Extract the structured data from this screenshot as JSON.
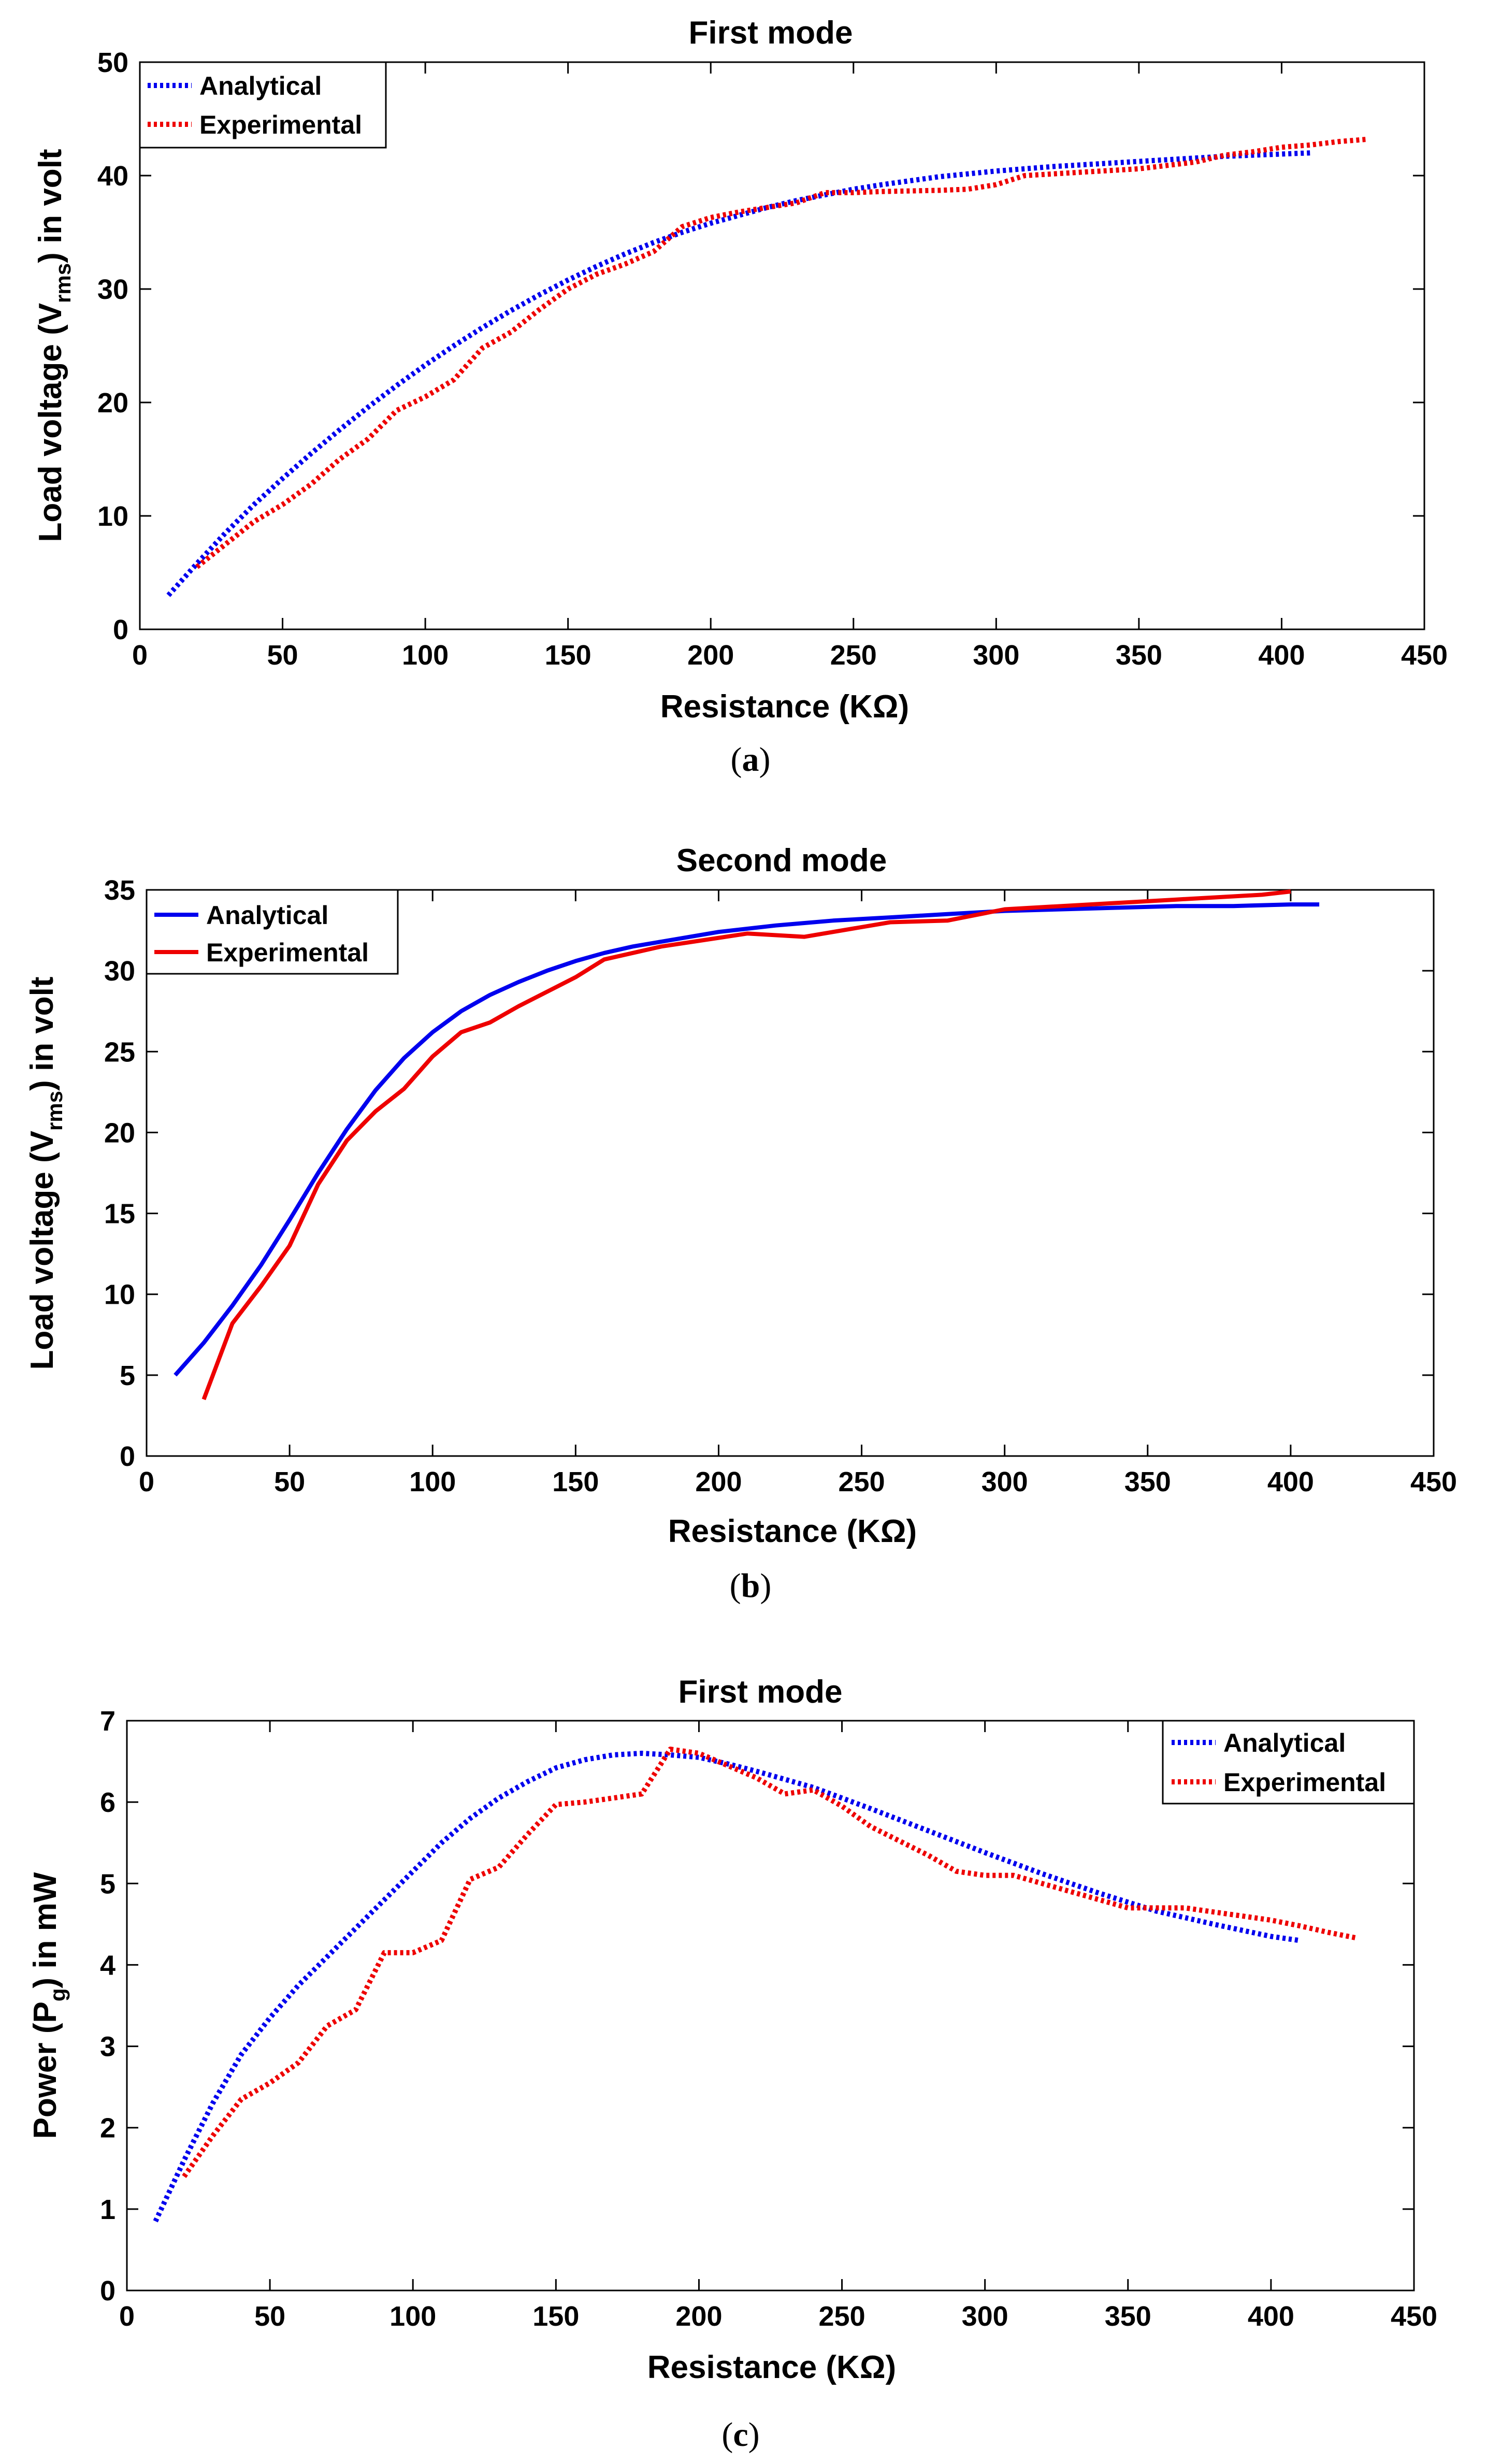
{
  "colors": {
    "analytical": "#0000ee",
    "experimental": "#ee0000",
    "axis": "#000000"
  },
  "chart_data": [
    {
      "type": "line",
      "title": "First mode",
      "xlabel": "Resistance (KΩ)",
      "ylabel_main": "Load voltage (V",
      "ylabel_sub": "rms",
      "ylabel_tail": ") in volt",
      "xlim": [
        0,
        450
      ],
      "ylim": [
        0,
        50
      ],
      "xticks": [
        0,
        50,
        100,
        150,
        200,
        250,
        300,
        350,
        400,
        450
      ],
      "yticks": [
        0,
        10,
        20,
        30,
        40,
        50
      ],
      "legend_position": "top-left",
      "line_style": "dotted",
      "caption": "a",
      "series": [
        {
          "name": "Analytical",
          "x": [
            10,
            20,
            30,
            40,
            50,
            60,
            70,
            80,
            90,
            100,
            110,
            120,
            130,
            140,
            150,
            160,
            170,
            180,
            190,
            200,
            210,
            220,
            230,
            240,
            250,
            260,
            280,
            300,
            320,
            340,
            360,
            380,
            400,
            410
          ],
          "y": [
            3,
            5.8,
            8.5,
            11,
            13.3,
            15.5,
            17.6,
            19.6,
            21.5,
            23.3,
            25,
            26.6,
            28.1,
            29.5,
            30.8,
            32,
            33.1,
            34.1,
            35,
            35.8,
            36.5,
            37.2,
            37.8,
            38.3,
            38.8,
            39.2,
            39.9,
            40.4,
            40.8,
            41.1,
            41.4,
            41.7,
            41.9,
            42
          ]
        },
        {
          "name": "Experimental",
          "x": [
            20,
            30,
            40,
            50,
            60,
            70,
            80,
            90,
            100,
            110,
            120,
            130,
            140,
            150,
            160,
            170,
            180,
            190,
            200,
            210,
            220,
            230,
            240,
            250,
            260,
            280,
            290,
            300,
            310,
            330,
            350,
            370,
            380,
            390,
            400,
            410,
            420,
            430
          ],
          "y": [
            5.5,
            7.5,
            9.5,
            11,
            12.8,
            15,
            16.8,
            19.3,
            20.5,
            22,
            24.8,
            26.2,
            28.2,
            30,
            31.3,
            32.2,
            33.3,
            35.5,
            36.3,
            36.8,
            37.2,
            37.6,
            38.5,
            38.5,
            38.6,
            38.7,
            38.8,
            39.2,
            40,
            40.3,
            40.6,
            41.2,
            41.8,
            42.1,
            42.5,
            42.7,
            43,
            43.2
          ]
        }
      ]
    },
    {
      "type": "line",
      "title": "Second mode",
      "xlabel": "Resistance (KΩ)",
      "ylabel_main": "Load voltage (V",
      "ylabel_sub": "rms",
      "ylabel_tail": ") in volt",
      "xlim": [
        0,
        450
      ],
      "ylim": [
        0,
        35
      ],
      "xticks": [
        0,
        50,
        100,
        150,
        200,
        250,
        300,
        350,
        400,
        450
      ],
      "yticks": [
        0,
        5,
        10,
        15,
        20,
        25,
        30,
        35
      ],
      "legend_position": "top-left",
      "line_style": "solid",
      "caption": "b",
      "series": [
        {
          "name": "Analytical",
          "x": [
            10,
            20,
            30,
            40,
            50,
            60,
            70,
            80,
            90,
            100,
            110,
            120,
            130,
            140,
            150,
            160,
            170,
            180,
            190,
            200,
            220,
            240,
            260,
            280,
            300,
            320,
            340,
            360,
            380,
            400,
            410
          ],
          "y": [
            5,
            7,
            9.3,
            11.8,
            14.6,
            17.5,
            20.2,
            22.6,
            24.6,
            26.2,
            27.5,
            28.5,
            29.3,
            30,
            30.6,
            31.1,
            31.5,
            31.8,
            32.1,
            32.4,
            32.8,
            33.1,
            33.3,
            33.5,
            33.7,
            33.8,
            33.9,
            34,
            34,
            34.1,
            34.1
          ]
        },
        {
          "name": "Experimental",
          "x": [
            20,
            30,
            40,
            50,
            60,
            70,
            80,
            90,
            100,
            110,
            120,
            130,
            140,
            150,
            160,
            180,
            210,
            230,
            260,
            280,
            300,
            320,
            340,
            360,
            380,
            390,
            400
          ],
          "y": [
            3.5,
            8.2,
            10.5,
            13,
            16.8,
            19.5,
            21.3,
            22.7,
            24.7,
            26.2,
            26.8,
            27.8,
            28.7,
            29.6,
            30.7,
            31.5,
            32.3,
            32.1,
            33,
            33.1,
            33.8,
            34,
            34.2,
            34.4,
            34.6,
            34.7,
            34.9
          ]
        }
      ]
    },
    {
      "type": "line",
      "title": "First mode",
      "xlabel": "Resistance (KΩ)",
      "ylabel_main": "Power (P",
      "ylabel_sub": "g",
      "ylabel_tail": ") in mW",
      "xlim": [
        0,
        450
      ],
      "ylim": [
        0,
        7
      ],
      "xticks": [
        0,
        50,
        100,
        150,
        200,
        250,
        300,
        350,
        400,
        450
      ],
      "yticks": [
        0,
        1,
        2,
        3,
        4,
        5,
        6,
        7
      ],
      "legend_position": "top-right",
      "line_style": "dotted",
      "caption": "c",
      "series": [
        {
          "name": "Analytical",
          "x": [
            10,
            20,
            30,
            40,
            50,
            60,
            70,
            80,
            90,
            100,
            110,
            120,
            130,
            140,
            150,
            160,
            170,
            180,
            190,
            200,
            210,
            220,
            230,
            240,
            250,
            260,
            280,
            300,
            320,
            340,
            360,
            380,
            400,
            410
          ],
          "y": [
            0.85,
            1.6,
            2.3,
            2.9,
            3.35,
            3.75,
            4.1,
            4.45,
            4.8,
            5.15,
            5.5,
            5.8,
            6.05,
            6.25,
            6.42,
            6.52,
            6.58,
            6.6,
            6.58,
            6.55,
            6.47,
            6.38,
            6.28,
            6.18,
            6.05,
            5.92,
            5.65,
            5.38,
            5.12,
            4.88,
            4.66,
            4.5,
            4.35,
            4.3
          ]
        },
        {
          "name": "Experimental",
          "x": [
            20,
            30,
            40,
            50,
            60,
            70,
            80,
            90,
            100,
            110,
            120,
            130,
            140,
            150,
            160,
            170,
            180,
            190,
            200,
            210,
            220,
            230,
            240,
            250,
            260,
            280,
            290,
            300,
            310,
            330,
            350,
            370,
            380,
            390,
            400,
            410,
            420,
            430
          ],
          "y": [
            1.4,
            1.9,
            2.35,
            2.55,
            2.8,
            3.25,
            3.45,
            4.15,
            4.15,
            4.3,
            5.05,
            5.2,
            5.6,
            5.97,
            6,
            6.05,
            6.1,
            6.65,
            6.6,
            6.45,
            6.3,
            6.1,
            6.15,
            5.95,
            5.7,
            5.35,
            5.15,
            5.1,
            5.1,
            4.9,
            4.7,
            4.7,
            4.65,
            4.6,
            4.55,
            4.48,
            4.4,
            4.33
          ]
        }
      ]
    }
  ]
}
